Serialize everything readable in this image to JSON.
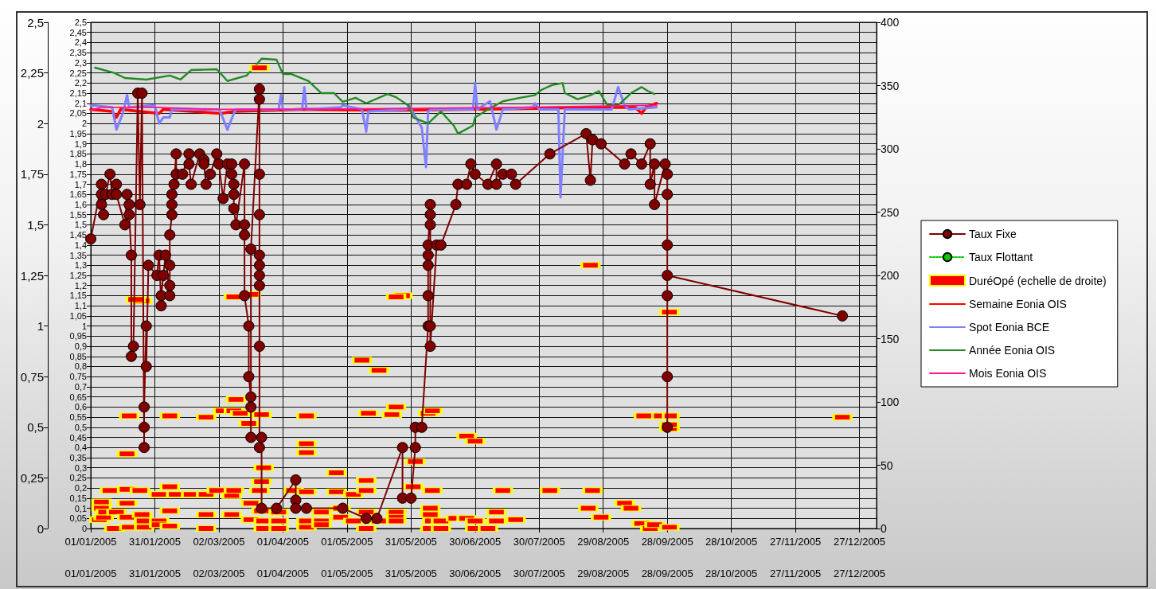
{
  "chart_data": {
    "type": "line",
    "xlim": [
      "2005-01-01",
      "2006-01-04"
    ],
    "xticks": [
      {
        "value": "2005-01-01",
        "label": "01/01/2005"
      },
      {
        "value": "2005-01-31",
        "label": "31/01/2005"
      },
      {
        "value": "2005-03-02",
        "label": "02/03/2005"
      },
      {
        "value": "2005-04-01",
        "label": "01/04/2005"
      },
      {
        "value": "2005-05-01",
        "label": "01/05/2005"
      },
      {
        "value": "2005-05-31",
        "label": "31/05/2005"
      },
      {
        "value": "2005-06-30",
        "label": "30/06/2005"
      },
      {
        "value": "2005-07-30",
        "label": "30/07/2005"
      },
      {
        "value": "2005-08-29",
        "label": "29/08/2005"
      },
      {
        "value": "2005-09-28",
        "label": "28/09/2005"
      },
      {
        "value": "2005-10-28",
        "label": "28/10/2005"
      },
      {
        "value": "2005-11-27",
        "label": "27/11/2005"
      },
      {
        "value": "2005-12-27",
        "label": "27/12/2005"
      }
    ],
    "x2lim": [
      "2005-01-01",
      "2006-01-04"
    ],
    "x2ticks": [
      {
        "value": "2005-01-01",
        "label": "01/01/2005"
      },
      {
        "value": "2005-01-31",
        "label": "31/01/2005"
      },
      {
        "value": "2005-03-02",
        "label": "02/03/2005"
      },
      {
        "value": "2005-04-01",
        "label": "01/04/2005"
      },
      {
        "value": "2005-05-01",
        "label": "01/05/2005"
      },
      {
        "value": "2005-05-31",
        "label": "31/05/2005"
      },
      {
        "value": "2005-06-30",
        "label": "30/06/2005"
      },
      {
        "value": "2005-07-30",
        "label": "30/07/2005"
      },
      {
        "value": "2005-08-29",
        "label": "29/08/2005"
      },
      {
        "value": "2005-09-28",
        "label": "28/09/2005"
      },
      {
        "value": "2005-10-28",
        "label": "28/10/2005"
      },
      {
        "value": "2005-11-27",
        "label": "27/11/2005"
      },
      {
        "value": "2005-12-27",
        "label": "27/12/2005"
      }
    ],
    "ylim": [
      0,
      2.5
    ],
    "yticks": [
      0,
      {
        "value": 0.25,
        "label": "0,25"
      },
      {
        "value": 0.5,
        "label": "0,5"
      },
      {
        "value": 0.75,
        "label": "0,75"
      },
      1,
      {
        "value": 1.25,
        "label": "1,25"
      },
      {
        "value": 1.5,
        "label": "1,5"
      },
      {
        "value": 1.75,
        "label": "1,75"
      },
      2,
      {
        "value": 2.25,
        "label": "2,25"
      },
      {
        "value": 2.5,
        "label": "2,5"
      }
    ],
    "y3lim": [
      0,
      2.5
    ],
    "y3ticks": [
      0,
      {
        "value": 0.05,
        "label": "0,05"
      },
      {
        "value": 0.1,
        "label": "0,1"
      },
      {
        "value": 0.15,
        "label": "0,15"
      },
      {
        "value": 0.2,
        "label": "0,2"
      },
      {
        "value": 0.25,
        "label": "0,25"
      },
      {
        "value": 0.3,
        "label": "0,3"
      },
      {
        "value": 0.35,
        "label": "0,35"
      },
      {
        "value": 0.4,
        "label": "0,4"
      },
      {
        "value": 0.45,
        "label": "0,45"
      },
      {
        "value": 0.5,
        "label": "0,5"
      },
      {
        "value": 0.55,
        "label": "0,55"
      },
      {
        "value": 0.6,
        "label": "0,6"
      },
      {
        "value": 0.65,
        "label": "0,65"
      },
      {
        "value": 0.7,
        "label": "0,7"
      },
      {
        "value": 0.75,
        "label": "0,75"
      },
      {
        "value": 0.8,
        "label": "0,8"
      },
      {
        "value": 0.85,
        "label": "0,85"
      },
      {
        "value": 0.9,
        "label": "0,9"
      },
      {
        "value": 0.95,
        "label": "0,95"
      },
      1,
      {
        "value": 1.05,
        "label": "1,05"
      },
      {
        "value": 1.1,
        "label": "1,1"
      },
      {
        "value": 1.15,
        "label": "1,15"
      },
      {
        "value": 1.2,
        "label": "1,2"
      },
      {
        "value": 1.25,
        "label": "1,25"
      },
      {
        "value": 1.3,
        "label": "1,3"
      },
      {
        "value": 1.35,
        "label": "1,35"
      },
      {
        "value": 1.4,
        "label": "1,4"
      },
      {
        "value": 1.45,
        "label": "1,45"
      },
      {
        "value": 1.5,
        "label": "1,5"
      },
      {
        "value": 1.55,
        "label": "1,55"
      },
      {
        "value": 1.6,
        "label": "1,6"
      },
      {
        "value": 1.65,
        "label": "1,65"
      },
      {
        "value": 1.7,
        "label": "1,7"
      },
      {
        "value": 1.75,
        "label": "1,75"
      },
      {
        "value": 1.8,
        "label": "1,8"
      },
      {
        "value": 1.85,
        "label": "1,85"
      },
      {
        "value": 1.9,
        "label": "1,9"
      },
      {
        "value": 1.95,
        "label": "1,95"
      },
      2,
      {
        "value": 2.05,
        "label": "2,05"
      },
      {
        "value": 2.1,
        "label": "2,1"
      },
      {
        "value": 2.15,
        "label": "2,15"
      },
      {
        "value": 2.2,
        "label": "2,2"
      },
      {
        "value": 2.25,
        "label": "2,25"
      },
      {
        "value": 2.3,
        "label": "2,3"
      },
      {
        "value": 2.35,
        "label": "2,35"
      },
      {
        "value": 2.4,
        "label": "2,4"
      },
      {
        "value": 2.45,
        "label": "2,45"
      },
      {
        "value": 2.5,
        "label": "2,5"
      }
    ],
    "y2lim": [
      0,
      400
    ],
    "y2ticks": [
      0,
      50,
      100,
      150,
      200,
      250,
      300,
      350,
      400
    ],
    "grid": true,
    "legend": "right",
    "series": [
      {
        "name": "Taux Fixe",
        "color": "#800000",
        "marker": "circle",
        "line_style": "solid",
        "x": [
          "2005-01-01",
          "2005-01-06",
          "2005-01-06",
          "2005-01-06",
          "2005-01-07",
          "2005-01-08",
          "2005-01-10",
          "2005-01-11",
          "2005-01-13",
          "2005-01-13",
          "2005-01-17",
          "2005-01-18",
          "2005-01-19",
          "2005-01-19",
          "2005-01-20",
          "2005-01-20",
          "2005-01-21",
          "2005-01-23",
          "2005-01-24",
          "2005-01-25",
          "2005-01-26",
          "2005-01-26",
          "2005-01-26",
          "2005-01-27",
          "2005-01-27",
          "2005-01-28",
          "2005-02-01",
          "2005-02-02",
          "2005-02-03",
          "2005-02-03",
          "2005-02-04",
          "2005-02-05",
          "2005-02-07",
          "2005-02-07",
          "2005-02-07",
          "2005-02-07",
          "2005-02-08",
          "2005-02-08",
          "2005-02-08",
          "2005-02-09",
          "2005-02-10",
          "2005-02-10",
          "2005-02-13",
          "2005-02-16",
          "2005-02-16",
          "2005-02-17",
          "2005-02-21",
          "2005-02-23",
          "2005-02-23",
          "2005-02-24",
          "2005-02-26",
          "2005-03-01",
          "2005-03-02",
          "2005-03-04",
          "2005-03-06",
          "2005-03-08",
          "2005-03-08",
          "2005-03-09",
          "2005-03-09",
          "2005-03-09",
          "2005-03-10",
          "2005-03-14",
          "2005-03-14",
          "2005-03-14",
          "2005-03-14",
          "2005-03-16",
          "2005-03-16",
          "2005-03-17",
          "2005-03-17",
          "2005-03-17",
          "2005-03-17",
          "2005-03-21",
          "2005-03-21",
          "2005-03-21",
          "2005-03-21",
          "2005-03-21",
          "2005-03-21",
          "2005-03-21",
          "2005-03-21",
          "2005-03-21",
          "2005-03-21",
          "2005-03-22",
          "2005-03-22",
          "2005-03-29",
          "2005-04-07",
          "2005-04-07",
          "2005-04-07",
          "2005-04-12",
          "2005-04-29",
          "2005-05-10",
          "2005-05-15",
          "2005-05-27",
          "2005-05-27",
          "2005-05-31",
          "2005-06-02",
          "2005-06-02",
          "2005-06-05",
          "2005-06-08",
          "2005-06-08",
          "2005-06-08",
          "2005-06-08",
          "2005-06-08",
          "2005-06-09",
          "2005-06-09",
          "2005-06-09",
          "2005-06-09",
          "2005-06-09",
          "2005-06-12",
          "2005-06-14",
          "2005-06-21",
          "2005-06-22",
          "2005-06-26",
          "2005-06-28",
          "2005-06-30",
          "2005-07-06",
          "2005-07-10",
          "2005-07-10",
          "2005-07-13",
          "2005-07-17",
          "2005-07-19",
          "2005-08-04",
          "2005-08-21",
          "2005-08-23",
          "2005-08-24",
          "2005-08-28",
          "2005-09-08",
          "2005-09-11",
          "2005-09-16",
          "2005-09-20",
          "2005-09-20",
          "2005-09-22",
          "2005-09-22",
          "2005-09-27",
          "2005-09-28",
          "2005-09-28",
          "2005-09-28",
          "2005-09-28",
          "2005-09-28",
          "2005-09-28",
          "2005-09-28",
          "2005-12-19"
        ],
        "values": [
          1.43,
          1.7,
          1.65,
          1.6,
          1.55,
          1.65,
          1.75,
          1.65,
          1.7,
          1.65,
          1.5,
          1.65,
          1.6,
          1.55,
          1.35,
          0.85,
          0.9,
          2.15,
          1.6,
          2.15,
          0.4,
          0.5,
          0.6,
          1.0,
          0.8,
          1.3,
          1.25,
          1.35,
          1.1,
          1.15,
          1.25,
          1.35,
          1.15,
          1.2,
          1.3,
          1.45,
          1.55,
          1.6,
          1.65,
          1.7,
          1.85,
          1.75,
          1.75,
          1.85,
          1.8,
          1.7,
          1.85,
          1.82,
          1.8,
          1.7,
          1.75,
          1.85,
          1.8,
          1.63,
          1.8,
          1.8,
          1.75,
          1.7,
          1.65,
          1.58,
          1.5,
          1.8,
          1.5,
          1.45,
          1.15,
          1.0,
          0.75,
          0.65,
          0.6,
          0.45,
          1.38,
          2.17,
          2.12,
          1.75,
          1.55,
          1.35,
          1.3,
          1.25,
          1.2,
          0.9,
          0.4,
          0.45,
          0.1,
          0.1,
          0.24,
          0.14,
          0.1,
          0.1,
          0.1,
          0.05,
          0.05,
          0.4,
          0.15,
          0.15,
          0.4,
          0.5,
          0.5,
          1.0,
          1.15,
          1.3,
          1.35,
          1.4,
          1.6,
          1.55,
          1.5,
          1.0,
          0.9,
          1.4,
          1.4,
          1.6,
          1.7,
          1.7,
          1.8,
          1.75,
          1.7,
          1.8,
          1.7,
          1.75,
          1.75,
          1.7,
          1.85,
          1.95,
          1.72,
          1.92,
          1.9,
          1.8,
          1.85,
          1.8,
          1.9,
          1.7,
          1.8,
          1.6,
          1.8,
          1.75,
          1.65,
          1.4,
          1.15,
          0.75,
          0.5,
          1.25,
          1.05
        ]
      },
      {
        "name": "Taux Flottant",
        "color": "#00cc00",
        "marker": "circle",
        "line_style": "dotted"
      },
      {
        "name": "DuréOpé (echelle de droite)",
        "type": "scatter",
        "color": "#ff0000",
        "marker": "square",
        "axis": "y2",
        "x": [
          "2005-01-06",
          "2005-01-06",
          "2005-01-05",
          "2005-01-07",
          "2005-01-10",
          "2005-01-08",
          "2005-01-13",
          "2005-01-12",
          "2005-01-18",
          "2005-01-18",
          "2005-01-19",
          "2005-01-18",
          "2005-01-18",
          "2005-01-19",
          "2005-01-24",
          "2005-01-25",
          "2005-01-22",
          "2005-01-25",
          "2005-01-26",
          "2005-01-26",
          "2005-02-02",
          "2005-02-02",
          "2005-02-02",
          "2005-02-07",
          "2005-02-07",
          "2005-02-07",
          "2005-02-07",
          "2005-02-10",
          "2005-02-17",
          "2005-02-24",
          "2005-02-24",
          "2005-02-24",
          "2005-02-24",
          "2005-03-04",
          "2005-03-01",
          "2005-03-09",
          "2005-03-10",
          "2005-03-09",
          "2005-03-08",
          "2005-03-08",
          "2005-03-09",
          "2005-03-12",
          "2005-03-16",
          "2005-03-17",
          "2005-03-17",
          "2005-03-17",
          "2005-03-22",
          "2005-03-23",
          "2005-03-22",
          "2005-03-21",
          "2005-03-22",
          "2005-03-23",
          "2005-03-23",
          "2005-03-21",
          "2005-03-30",
          "2005-03-30",
          "2005-03-30",
          "2005-04-06",
          "2005-04-12",
          "2005-04-12",
          "2005-04-12",
          "2005-04-12",
          "2005-04-12",
          "2005-04-12",
          "2005-04-19",
          "2005-04-19",
          "2005-04-19",
          "2005-04-26",
          "2005-04-26",
          "2005-04-28",
          "2005-04-28",
          "2005-05-04",
          "2005-05-04",
          "2005-05-08",
          "2005-05-11",
          "2005-05-10",
          "2005-05-10",
          "2005-05-10",
          "2005-05-10",
          "2005-05-16",
          "2005-05-16",
          "2005-05-22",
          "2005-05-24",
          "2005-05-27",
          "2005-05-24",
          "2005-05-24",
          "2005-05-24",
          "2005-05-24",
          "2005-06-01",
          "2005-06-02",
          "2005-06-08",
          "2005-06-10",
          "2005-06-10",
          "2005-06-09",
          "2005-06-09",
          "2005-06-10",
          "2005-06-09",
          "2005-06-14",
          "2005-06-14",
          "2005-06-21",
          "2005-06-26",
          "2005-06-30",
          "2005-06-26",
          "2005-06-30",
          "2005-06-30",
          "2005-07-06",
          "2005-07-10",
          "2005-07-10",
          "2005-07-13",
          "2005-07-19",
          "2005-08-04",
          "2005-08-22",
          "2005-08-24",
          "2005-08-28",
          "2005-08-23",
          "2005-09-08",
          "2005-09-11",
          "2005-09-16",
          "2005-09-20",
          "2005-09-22",
          "2005-09-29",
          "2005-09-29",
          "2005-09-22",
          "2005-09-17",
          "2005-09-29",
          "2005-09-29",
          "2005-09-29",
          "2005-09-29",
          "2005-12-19"
        ],
        "values": [
          21,
          16,
          7,
          9,
          30,
          13,
          13,
          0,
          20,
          59,
          89,
          9,
          31,
          1,
          30,
          180,
          181,
          11,
          6,
          1,
          27,
          6,
          3,
          33,
          89,
          14,
          2,
          27,
          27,
          11,
          88,
          27,
          0,
          93,
          30,
          183,
          102,
          93,
          26,
          11,
          30,
          91,
          83,
          185,
          20,
          7,
          90,
          48,
          37,
          30,
          14,
          6,
          0,
          364,
          13,
          6,
          0,
          30,
          89,
          67,
          60,
          29,
          6,
          1,
          13,
          6,
          3,
          44,
          29,
          16,
          9,
          27,
          6,
          133,
          91,
          38,
          30,
          13,
          0,
          125,
          6,
          90,
          96,
          184,
          183,
          13,
          9,
          6,
          33,
          53,
          91,
          93,
          30,
          16,
          11,
          6,
          0,
          6,
          0,
          8,
          73,
          69,
          8,
          6,
          0,
          0,
          13,
          6,
          30,
          7,
          30,
          16,
          30,
          9,
          208,
          20,
          16,
          4,
          0,
          3,
          1,
          89,
          89,
          89,
          171,
          80,
          79,
          82,
          88
        ]
      },
      {
        "name": "Semaine Eonia OIS",
        "color": "#ff0000",
        "marker": "none",
        "line_style": "solid",
        "x": [
          "2005-01-01",
          "2005-01-11",
          "2005-01-13",
          "2005-01-15",
          "2005-02-02",
          "2005-02-04",
          "2005-03-03",
          "2005-03-09",
          "2005-04-11",
          "2005-05-21",
          "2005-08-01",
          "2005-08-19",
          "2005-09-13",
          "2005-09-16",
          "2005-09-18",
          "2005-09-23"
        ],
        "values": [
          2.07,
          2.06,
          2.03,
          2.07,
          2.05,
          2.07,
          2.05,
          2.06,
          2.07,
          2.065,
          2.075,
          2.08,
          2.08,
          2.05,
          2.08,
          2.1
        ]
      },
      {
        "name": "Spot Eonia BCE",
        "color": "#8080ff",
        "marker": "none",
        "line_style": "solid",
        "x": [
          "2005-01-01",
          "2005-01-11",
          "2005-01-13",
          "2005-01-16",
          "2005-01-18",
          "2005-01-19",
          "2005-01-31",
          "2005-02-02",
          "2005-02-04",
          "2005-02-07",
          "2005-02-08",
          "2005-03-02",
          "2005-03-03",
          "2005-03-06",
          "2005-03-09",
          "2005-03-10",
          "2005-03-30",
          "2005-03-31",
          "2005-04-01",
          "2005-04-10",
          "2005-04-11",
          "2005-04-12",
          "2005-04-28",
          "2005-04-29",
          "2005-05-08",
          "2005-05-10",
          "2005-05-11",
          "2005-05-29",
          "2005-05-30",
          "2005-06-05",
          "2005-06-07",
          "2005-06-08",
          "2005-06-10",
          "2005-06-29",
          "2005-06-30",
          "2005-07-01",
          "2005-07-07",
          "2005-07-10",
          "2005-07-13",
          "2005-07-27",
          "2005-07-28",
          "2005-07-30",
          "2005-08-08",
          "2005-08-09",
          "2005-08-11",
          "2005-09-02",
          "2005-09-05",
          "2005-09-08",
          "2005-09-10",
          "2005-09-23"
        ],
        "values": [
          2.09,
          2.08,
          1.97,
          2.05,
          2.14,
          2.08,
          2.09,
          2.0,
          2.03,
          2.03,
          2.07,
          2.07,
          2.05,
          1.97,
          2.05,
          2.07,
          2.07,
          2.14,
          2.07,
          2.07,
          2.18,
          2.07,
          2.08,
          2.09,
          2.07,
          1.96,
          2.06,
          2.07,
          2.09,
          1.98,
          1.785,
          2.06,
          2.07,
          2.07,
          2.2,
          2.07,
          2.11,
          1.97,
          2.07,
          2.08,
          2.1,
          2.07,
          2.07,
          1.635,
          2.07,
          2.07,
          2.18,
          2.09,
          2.07,
          2.08
        ]
      },
      {
        "name": "Année Eonia OIS",
        "color": "#228b22",
        "marker": "none",
        "line_style": "solid",
        "x": [
          "2005-01-03",
          "2005-01-12",
          "2005-01-17",
          "2005-01-27",
          "2005-02-07",
          "2005-02-12",
          "2005-02-17",
          "2005-03-01",
          "2005-03-06",
          "2005-03-15",
          "2005-03-22",
          "2005-03-29",
          "2005-04-01",
          "2005-04-05",
          "2005-04-13",
          "2005-04-19",
          "2005-04-25",
          "2005-04-29",
          "2005-05-05",
          "2005-05-10",
          "2005-05-20",
          "2005-05-24",
          "2005-05-30",
          "2005-06-01",
          "2005-06-08",
          "2005-06-14",
          "2005-06-20",
          "2005-06-22",
          "2005-06-29",
          "2005-06-30",
          "2005-07-06",
          "2005-07-13",
          "2005-07-21",
          "2005-07-28",
          "2005-07-31",
          "2005-08-05",
          "2005-08-10",
          "2005-08-11",
          "2005-08-17",
          "2005-08-23",
          "2005-08-27",
          "2005-08-31",
          "2005-09-05",
          "2005-09-11",
          "2005-09-16",
          "2005-09-19",
          "2005-09-22"
        ],
        "values": [
          2.276,
          2.25,
          2.225,
          2.217,
          2.237,
          2.217,
          2.264,
          2.268,
          2.21,
          2.237,
          2.32,
          2.315,
          2.244,
          2.244,
          2.21,
          2.15,
          2.15,
          2.107,
          2.127,
          2.1,
          2.146,
          2.13,
          2.087,
          2.03,
          2.0,
          2.06,
          1.99,
          1.95,
          1.99,
          2.03,
          2.07,
          2.11,
          2.127,
          2.14,
          2.166,
          2.19,
          2.2,
          2.15,
          2.12,
          2.14,
          2.16,
          2.09,
          2.09,
          2.15,
          2.18,
          2.16,
          2.146
        ]
      },
      {
        "name": "Mois Eonia OIS",
        "color": "#ff1493",
        "marker": "none",
        "line_style": "solid",
        "x": [
          "2005-01-01",
          "2005-01-06",
          "2005-01-31",
          "2005-03-02",
          "2005-04-11",
          "2005-05-31",
          "2005-07-20",
          "2005-09-23"
        ],
        "values": [
          2.065,
          2.08,
          2.08,
          2.07,
          2.07,
          2.075,
          2.08,
          2.09
        ]
      }
    ]
  }
}
